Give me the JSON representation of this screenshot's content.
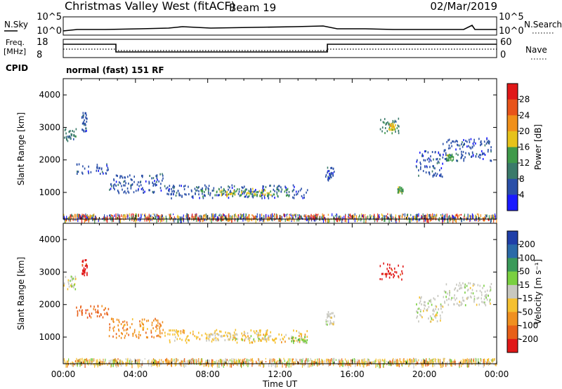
{
  "header": {
    "title": "Christmas Valley West (fitACF)",
    "beam": "Beam 19",
    "date": "02/Mar/2019"
  },
  "summary": {
    "nsky_label": "N.Sky",
    "nsky_ticks": [
      "10^5",
      "10^0"
    ],
    "nsearch_label": "N.Search",
    "nsearch_ticks": [
      "10^5",
      "10^0"
    ],
    "freq_label": [
      "Freq.",
      "[MHz]"
    ],
    "freq_ticks": [
      "18",
      "8"
    ],
    "nave_label": "Nave",
    "nave_ticks": [
      "60",
      "0"
    ],
    "cpid_label": "CPID",
    "cpid_text": "normal (fast) 151 RF"
  },
  "chart_data": [
    {
      "type": "heatmap",
      "name": "power",
      "ylabel": "Slant Range [km]",
      "ylim": [
        180,
        4500
      ],
      "yticks": [
        1000,
        2000,
        3000,
        4000
      ],
      "xlim": [
        0,
        24
      ],
      "colorbar": {
        "label": "Power [dB]",
        "ticks": [
          "4",
          "8",
          "12",
          "16",
          "20",
          "24",
          "28"
        ],
        "colors": [
          "#1a1aff",
          "#2a4fa8",
          "#3a7a6a",
          "#3f9a4a",
          "#e6c21a",
          "#f0901a",
          "#e8541a",
          "#e01818"
        ]
      },
      "echoes": [
        {
          "t0": 0.0,
          "t1": 0.7,
          "r0": 2600,
          "r1": 3000,
          "level": 2
        },
        {
          "t0": 1.0,
          "t1": 1.3,
          "r0": 2900,
          "r1": 3500,
          "level": 1
        },
        {
          "t0": 0.6,
          "t1": 2.5,
          "r0": 1600,
          "r1": 1900,
          "level": 1
        },
        {
          "t0": 2.5,
          "t1": 5.5,
          "r0": 1000,
          "r1": 1600,
          "level": 1
        },
        {
          "t0": 5.5,
          "t1": 13.5,
          "r0": 850,
          "r1": 1250,
          "level": 1
        },
        {
          "t0": 7.5,
          "t1": 12.5,
          "r0": 900,
          "r1": 1150,
          "level": 3
        },
        {
          "t0": 8.5,
          "t1": 11.5,
          "r0": 930,
          "r1": 1080,
          "level": 4
        },
        {
          "t0": 14.5,
          "t1": 15.0,
          "r0": 1400,
          "r1": 1800,
          "level": 1
        },
        {
          "t0": 17.5,
          "t1": 18.7,
          "r0": 2800,
          "r1": 3300,
          "level": 2
        },
        {
          "t0": 18.0,
          "t1": 18.4,
          "r0": 2950,
          "r1": 3150,
          "level": 4
        },
        {
          "t0": 18.5,
          "t1": 18.8,
          "r0": 1000,
          "r1": 1200,
          "level": 3
        },
        {
          "t0": 19.5,
          "t1": 21.0,
          "r0": 1500,
          "r1": 2300,
          "level": 1
        },
        {
          "t0": 21.0,
          "t1": 23.7,
          "r0": 2000,
          "r1": 2700,
          "level": 1
        },
        {
          "t0": 21.2,
          "t1": 21.6,
          "r0": 2000,
          "r1": 2200,
          "level": 3
        }
      ]
    },
    {
      "type": "heatmap",
      "name": "velocity",
      "ylabel": "Slant Range [km]",
      "xlabel": "Time UT",
      "ylim": [
        180,
        4500
      ],
      "yticks": [
        1000,
        2000,
        3000,
        4000
      ],
      "xlim": [
        0,
        24
      ],
      "xticks": [
        "00:00",
        "04:00",
        "08:00",
        "12:00",
        "16:00",
        "20:00",
        "00:00"
      ],
      "colorbar": {
        "label": "Velocity [m s⁻¹]",
        "ticks": [
          "200",
          "100",
          "50",
          "15",
          "-15",
          "-50",
          "-100",
          "-200"
        ],
        "colors": [
          "#1f3fa8",
          "#2a6aa8",
          "#3a9a5a",
          "#7ad040",
          "#c8c8c0",
          "#f5c030",
          "#f09020",
          "#e86018",
          "#e01818"
        ]
      },
      "echoes": [
        {
          "t0": 0.0,
          "t1": 0.7,
          "r0": 2500,
          "r1": 2900,
          "level": 4
        },
        {
          "t0": 1.0,
          "t1": 1.3,
          "r0": 2900,
          "r1": 3400,
          "level": 8
        },
        {
          "t0": 0.6,
          "t1": 2.5,
          "r0": 1600,
          "r1": 2000,
          "level": 7
        },
        {
          "t0": 2.5,
          "t1": 5.5,
          "r0": 1000,
          "r1": 1600,
          "level": 6
        },
        {
          "t0": 5.5,
          "t1": 13.5,
          "r0": 850,
          "r1": 1250,
          "level": 5
        },
        {
          "t0": 8.0,
          "t1": 11.5,
          "r0": 900,
          "r1": 1150,
          "level": 4
        },
        {
          "t0": 12.5,
          "t1": 13.5,
          "r0": 850,
          "r1": 1050,
          "level": 3
        },
        {
          "t0": 14.5,
          "t1": 15.0,
          "r0": 1400,
          "r1": 1800,
          "level": 4
        },
        {
          "t0": 17.5,
          "t1": 18.8,
          "r0": 2800,
          "r1": 3300,
          "level": 8
        },
        {
          "t0": 19.5,
          "t1": 21.0,
          "r0": 1500,
          "r1": 2300,
          "level": 4
        },
        {
          "t0": 21.0,
          "t1": 23.7,
          "r0": 2000,
          "r1": 2700,
          "level": 4
        }
      ]
    }
  ]
}
